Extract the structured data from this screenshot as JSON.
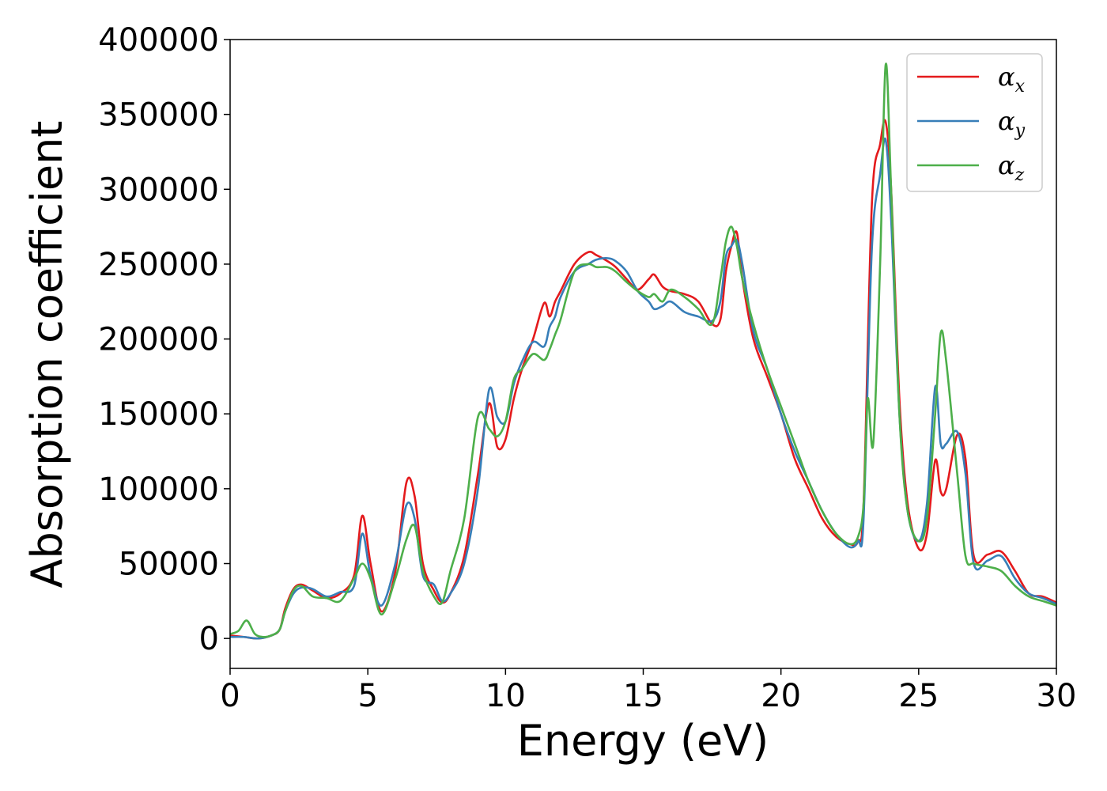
{
  "chart_data": {
    "type": "line",
    "title": "",
    "xlabel": "Energy (eV)",
    "ylabel": "Absorption coefficient",
    "xlim": [
      0,
      30
    ],
    "ylim": [
      -20000,
      400000
    ],
    "xticks": [
      "0",
      "5",
      "10",
      "15",
      "20",
      "25",
      "30"
    ],
    "yticks": [
      "0",
      "50000",
      "100000",
      "150000",
      "200000",
      "250000",
      "300000",
      "350000",
      "400000"
    ],
    "grid": false,
    "legend_position": "top-right",
    "series": [
      {
        "name": "α_x",
        "symbol": "α",
        "subscript": "x",
        "color": "#e41a1c",
        "x": [
          0,
          0.5,
          1,
          1.5,
          1.8,
          2,
          2.3,
          2.6,
          3,
          3.5,
          4,
          4.5,
          4.8,
          5.1,
          5.5,
          6,
          6.4,
          6.7,
          7,
          7.4,
          7.7,
          8,
          8.5,
          9,
          9.4,
          9.7,
          10,
          10.3,
          10.6,
          11,
          11.4,
          11.6,
          11.8,
          12,
          12.5,
          13,
          13.3,
          13.7,
          14,
          14.4,
          14.8,
          15.2,
          15.4,
          15.7,
          16,
          16.5,
          17,
          17.5,
          17.8,
          18,
          18.2,
          18.4,
          18.6,
          19,
          19.5,
          20,
          20.5,
          21,
          21.5,
          22,
          22.5,
          22.8,
          23,
          23.3,
          23.6,
          23.8,
          24,
          24.3,
          24.6,
          25,
          25.3,
          25.6,
          25.8,
          26,
          26.4,
          26.7,
          27,
          27.5,
          28,
          28.5,
          29,
          29.5,
          30
        ],
        "y": [
          2000,
          1000,
          0,
          2000,
          6000,
          20000,
          33000,
          36000,
          32000,
          27000,
          30000,
          42000,
          82000,
          50000,
          18000,
          45000,
          104000,
          95000,
          50000,
          32000,
          24000,
          30000,
          55000,
          110000,
          157000,
          128000,
          133000,
          160000,
          180000,
          200000,
          224000,
          215000,
          225000,
          232000,
          250000,
          258000,
          256000,
          252000,
          248000,
          240000,
          233000,
          240000,
          243000,
          235000,
          232000,
          230000,
          225000,
          210000,
          213000,
          245000,
          262000,
          271000,
          240000,
          200000,
          175000,
          150000,
          120000,
          100000,
          80000,
          68000,
          63000,
          65000,
          90000,
          290000,
          330000,
          345000,
          300000,
          160000,
          90000,
          60000,
          70000,
          119000,
          98000,
          100000,
          136000,
          120000,
          55000,
          56000,
          58000,
          45000,
          30000,
          28000,
          24000
        ]
      },
      {
        "name": "α_y",
        "symbol": "α",
        "subscript": "y",
        "color": "#377eb8",
        "x": [
          0,
          0.5,
          1,
          1.5,
          1.8,
          2,
          2.3,
          2.6,
          3,
          3.5,
          4,
          4.5,
          4.8,
          5.1,
          5.5,
          6,
          6.4,
          6.7,
          7,
          7.4,
          7.7,
          8,
          8.5,
          9,
          9.4,
          9.7,
          10,
          10.3,
          10.6,
          11,
          11.4,
          11.6,
          11.8,
          12,
          12.5,
          13,
          13.3,
          13.7,
          14,
          14.4,
          14.8,
          15.2,
          15.4,
          15.7,
          16,
          16.5,
          17,
          17.5,
          17.8,
          18,
          18.2,
          18.4,
          18.6,
          19,
          19.5,
          20,
          20.5,
          21,
          21.5,
          22,
          22.5,
          22.8,
          23,
          23.3,
          23.6,
          23.8,
          24,
          24.3,
          24.6,
          25,
          25.3,
          25.6,
          25.8,
          26,
          26.4,
          26.7,
          27,
          27.5,
          28,
          28.5,
          29,
          29.5,
          30
        ],
        "y": [
          1000,
          1000,
          0,
          2000,
          6000,
          18000,
          30000,
          34000,
          33000,
          28000,
          31000,
          35000,
          70000,
          42000,
          22000,
          50000,
          89000,
          80000,
          42000,
          36000,
          25000,
          30000,
          50000,
          100000,
          166000,
          148000,
          145000,
          170000,
          185000,
          198000,
          195000,
          208000,
          215000,
          228000,
          245000,
          250000,
          253000,
          254000,
          252000,
          245000,
          232000,
          225000,
          220000,
          222000,
          225000,
          218000,
          215000,
          212000,
          225000,
          255000,
          262000,
          266000,
          250000,
          205000,
          180000,
          150000,
          125000,
          105000,
          85000,
          70000,
          61000,
          65000,
          80000,
          260000,
          310000,
          333000,
          280000,
          150000,
          85000,
          65000,
          90000,
          168000,
          130000,
          130000,
          138000,
          110000,
          50000,
          52000,
          55000,
          40000,
          30000,
          27000,
          23000
        ]
      },
      {
        "name": "α_z",
        "symbol": "α",
        "subscript": "z",
        "color": "#4daf4a",
        "x": [
          0,
          0.3,
          0.6,
          0.9,
          1.2,
          1.5,
          1.8,
          2,
          2.3,
          2.6,
          3,
          3.5,
          4,
          4.5,
          4.8,
          5.1,
          5.5,
          6,
          6.4,
          6.7,
          7,
          7.4,
          7.7,
          8,
          8.5,
          9,
          9.4,
          9.7,
          10,
          10.3,
          10.6,
          11,
          11.4,
          11.6,
          11.8,
          12,
          12.5,
          13,
          13.3,
          13.7,
          14,
          14.4,
          14.8,
          15.2,
          15.4,
          15.7,
          16,
          16.5,
          17,
          17.5,
          17.8,
          18,
          18.2,
          18.4,
          18.6,
          19,
          19.5,
          20,
          20.5,
          21,
          21.5,
          22,
          22.5,
          22.8,
          23,
          23.15,
          23.35,
          23.6,
          23.8,
          24,
          24.3,
          24.6,
          25,
          25.3,
          25.6,
          25.8,
          26,
          26.4,
          26.7,
          27,
          27.5,
          28,
          28.5,
          29,
          29.5,
          30
        ],
        "y": [
          3000,
          5000,
          12000,
          3000,
          1000,
          2000,
          6000,
          18000,
          32000,
          35000,
          28000,
          27000,
          25000,
          40000,
          50000,
          40000,
          16000,
          40000,
          66000,
          75000,
          45000,
          28000,
          24000,
          45000,
          80000,
          148000,
          140000,
          135000,
          145000,
          173000,
          180000,
          190000,
          186000,
          193000,
          203000,
          213000,
          245000,
          250000,
          248000,
          248000,
          245000,
          238000,
          232000,
          228000,
          230000,
          225000,
          233000,
          228000,
          220000,
          210000,
          240000,
          265000,
          275000,
          262000,
          240000,
          210000,
          180000,
          155000,
          130000,
          105000,
          85000,
          70000,
          63000,
          68000,
          90000,
          160000,
          130000,
          250000,
          383000,
          300000,
          150000,
          85000,
          65000,
          80000,
          150000,
          204000,
          185000,
          110000,
          55000,
          50000,
          48000,
          45000,
          35000,
          28000,
          25000,
          22000
        ]
      }
    ]
  }
}
